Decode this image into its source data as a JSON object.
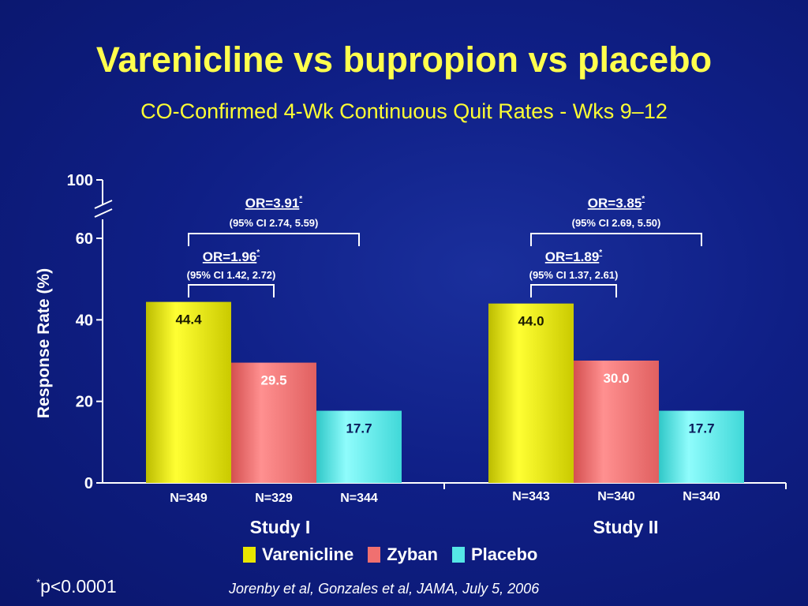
{
  "title": "Varenicline vs bupropion vs placebo",
  "subtitle": "CO-Confirmed 4-Wk Continuous Quit Rates - Wks 9–12",
  "chart_data": {
    "type": "bar",
    "ylabel": "Response Rate (%)",
    "yticks": [
      "0",
      "20",
      "40",
      "60",
      "100"
    ],
    "ylim": [
      0,
      100
    ],
    "axis_break": [
      60,
      100
    ],
    "groups": [
      {
        "label": "Study I",
        "bars": [
          {
            "series": "Varenicline",
            "value": 44.4,
            "label": "44.4",
            "n": "N=349"
          },
          {
            "series": "Zyban",
            "value": 29.5,
            "label": "29.5",
            "n": "N=329"
          },
          {
            "series": "Placebo",
            "value": 17.7,
            "label": "17.7",
            "n": "N=344"
          }
        ],
        "comparisons": [
          {
            "or": "OR=1.96",
            "star": "*",
            "ci": "(95% CI  1.42, 2.72)",
            "from": 0,
            "to": 1,
            "level": 1
          },
          {
            "or": "OR=3.91",
            "star": "*",
            "ci": "(95% CI  2.74, 5.59)",
            "from": 0,
            "to": 2,
            "level": 2
          }
        ]
      },
      {
        "label": "Study II",
        "bars": [
          {
            "series": "Varenicline",
            "value": 44.0,
            "label": "44.0",
            "n": "N=343"
          },
          {
            "series": "Zyban",
            "value": 30.0,
            "label": "30.0",
            "n": "N=340"
          },
          {
            "series": "Placebo",
            "value": 17.7,
            "label": "17.7",
            "n": "N=340"
          }
        ],
        "comparisons": [
          {
            "or": "OR=1.89",
            "star": "*",
            "ci": "(95% CI 1.37, 2.61)",
            "from": 0,
            "to": 1,
            "level": 1
          },
          {
            "or": "OR=3.85",
            "star": "*",
            "ci": "(95% CI  2.69, 5.50)",
            "from": 0,
            "to": 2,
            "level": 2
          }
        ]
      }
    ],
    "series": [
      {
        "name": "Varenicline",
        "color": "#e8e600",
        "label_color": "#1a1a00"
      },
      {
        "name": "Zyban",
        "color": "#f07070",
        "label_color": "#ffffff"
      },
      {
        "name": "Placebo",
        "color": "#55e6e6",
        "label_color": "#0a1a5a"
      }
    ],
    "legend": "bottom-center"
  },
  "footnote": {
    "mark": "*",
    "text": "p<0.0001"
  },
  "citation": "Jorenby et al, Gonzales et al, JAMA, July 5, 2006"
}
